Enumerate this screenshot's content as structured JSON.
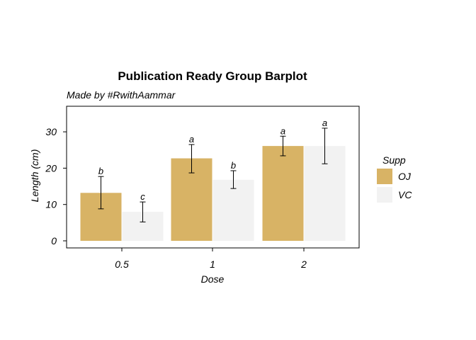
{
  "chart_data": {
    "type": "bar",
    "title": "Publication Ready Group Barplot",
    "subtitle": "Made by #RwithAammar",
    "xlabel": "Dose",
    "ylabel": "Length (cm)",
    "categories": [
      "0.5",
      "1",
      "2"
    ],
    "ylim": [
      -2,
      37
    ],
    "yticks": [
      0,
      10,
      20,
      30
    ],
    "legend": {
      "title": "Supp",
      "position": "right"
    },
    "series": [
      {
        "name": "OJ",
        "color": "#d8b365",
        "values": [
          13.2,
          22.7,
          26.1
        ],
        "error_low": [
          8.8,
          18.7,
          23.4
        ],
        "error_high": [
          17.7,
          26.5,
          28.8
        ],
        "sig_labels": [
          "b",
          "a",
          "a"
        ]
      },
      {
        "name": "VC",
        "color": "#f2f2f2",
        "values": [
          8.0,
          16.8,
          26.1
        ],
        "error_low": [
          5.2,
          14.4,
          21.2
        ],
        "error_high": [
          10.7,
          19.3,
          31.0
        ],
        "sig_labels": [
          "c",
          "b",
          "a"
        ]
      }
    ]
  }
}
